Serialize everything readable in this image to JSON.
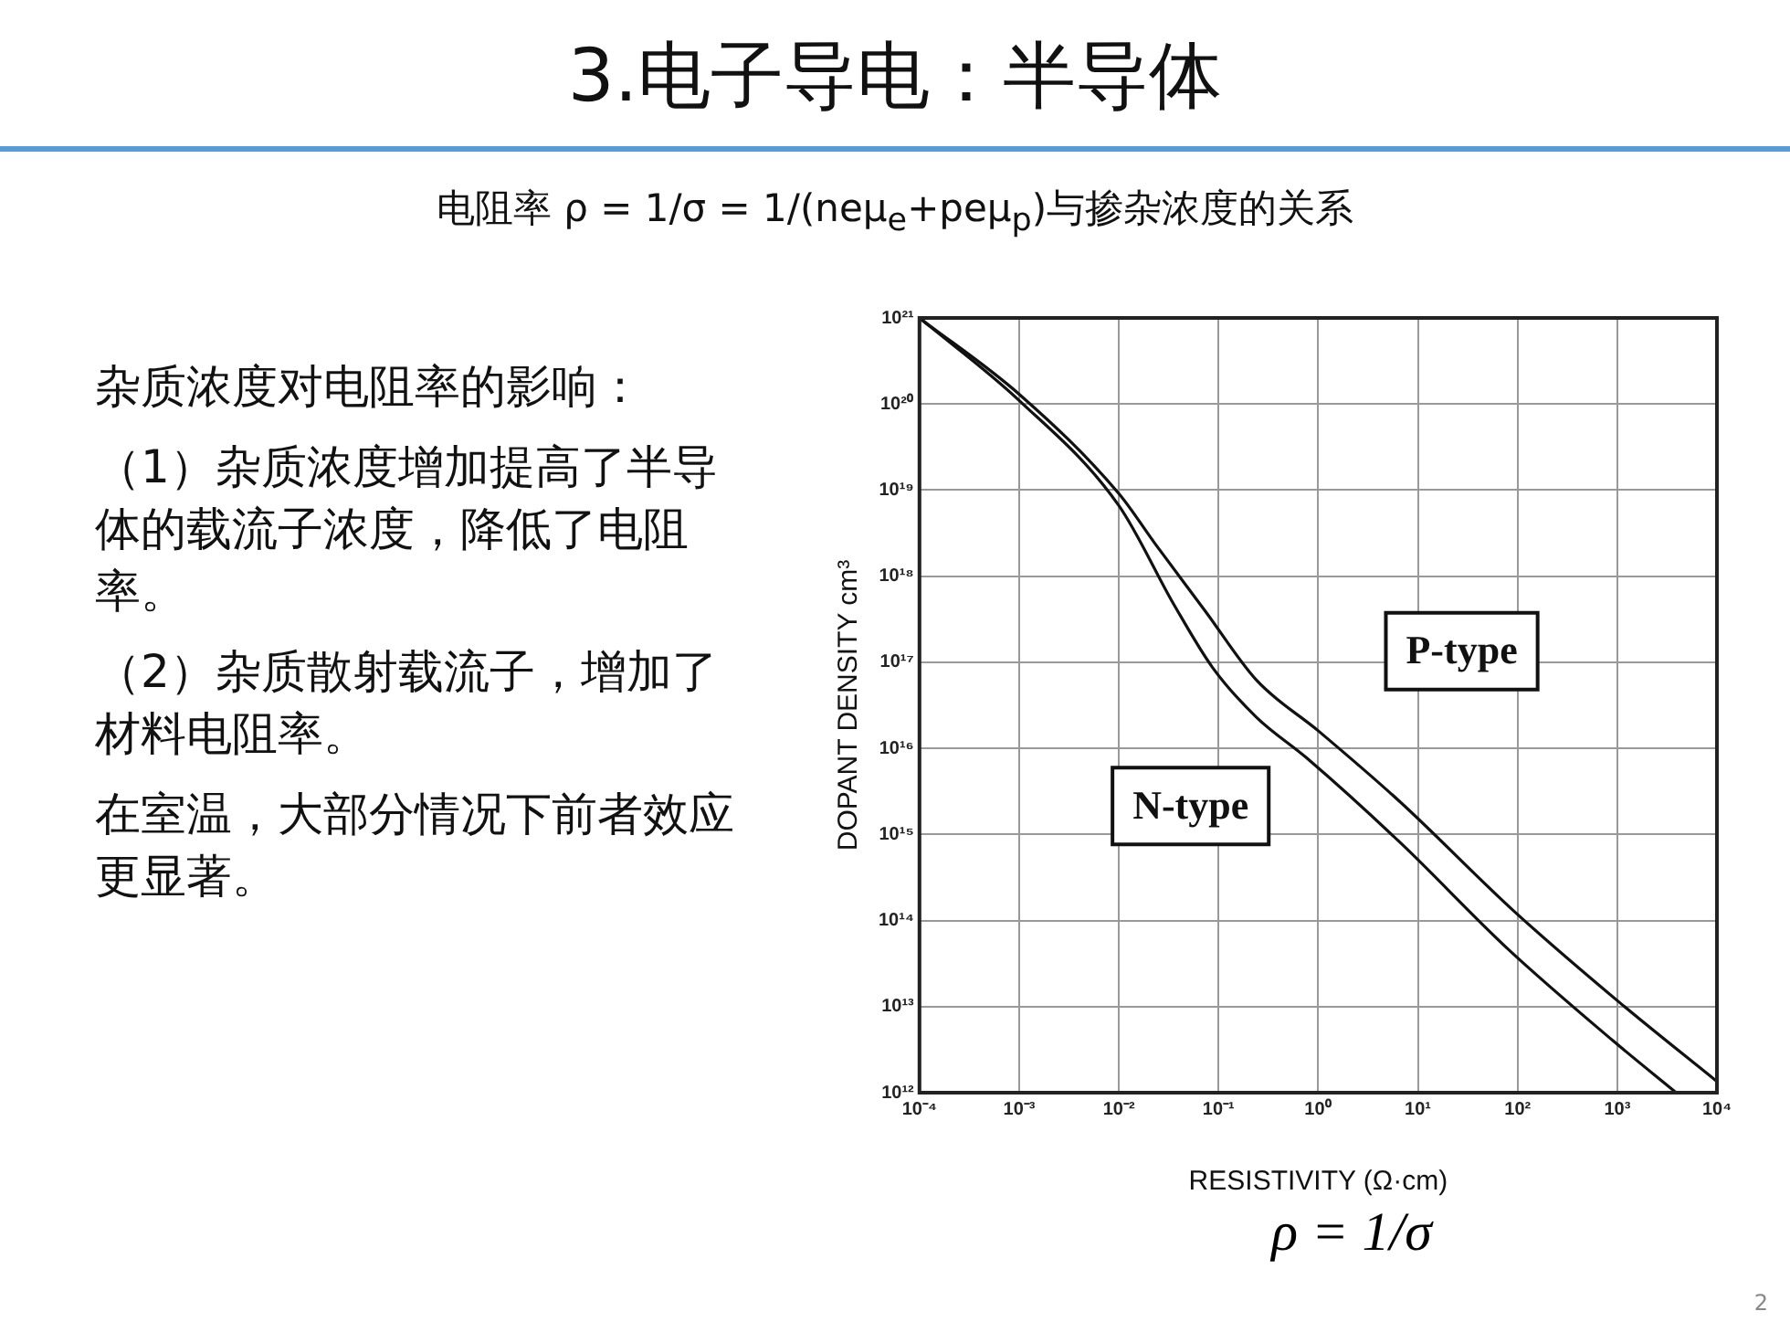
{
  "chart_data": {
    "type": "line",
    "title": "3.电子导电：半导体",
    "subtitle": "电阻率 ρ = 1/σ = 1/(neμ$_{e}$+peμ$_{p}$)与掺杂浓度的关系",
    "xlabel": "RESISTIVITY (Ω·cm)",
    "ylabel": "DOPANT DENSITY cm³",
    "log": "xy",
    "grid": true,
    "legend": false,
    "marker": "none",
    "line_style": "solid",
    "xlim": [
      0.0001,
      10000
    ],
    "ylim": [
      1000000000000.0,
      1e+21
    ],
    "xticks": [
      {
        "value": 0.0001,
        "label": "10⁻⁴"
      },
      {
        "value": 0.001,
        "label": "10⁻³"
      },
      {
        "value": 0.01,
        "label": "10⁻²"
      },
      {
        "value": 0.1,
        "label": "10⁻¹"
      },
      {
        "value": 1,
        "label": "10⁰"
      },
      {
        "value": 10,
        "label": "10¹"
      },
      {
        "value": 100,
        "label": "10²"
      },
      {
        "value": 1000,
        "label": "10³"
      },
      {
        "value": 10000,
        "label": "10⁴"
      }
    ],
    "yticks": [
      {
        "value": 1000000000000.0,
        "label": "10¹²"
      },
      {
        "value": 10000000000000.0,
        "label": "10¹³"
      },
      {
        "value": 100000000000000.0,
        "label": "10¹⁴"
      },
      {
        "value": 1000000000000000.0,
        "label": "10¹⁵"
      },
      {
        "value": 1e+16,
        "label": "10¹⁶"
      },
      {
        "value": 1e+17,
        "label": "10¹⁷"
      },
      {
        "value": 1e+18,
        "label": "10¹⁸"
      },
      {
        "value": 1e+19,
        "label": "10¹⁹"
      },
      {
        "value": 1e+20,
        "label": "10²⁰"
      },
      {
        "value": 1e+21,
        "label": "10²¹"
      }
    ],
    "series": [
      {
        "name": "P-type",
        "color": "#111111",
        "x": [
          0.0001,
          0.001,
          0.01,
          0.023,
          0.074,
          0.24,
          1,
          6.6,
          91,
          1070,
          10000
        ],
        "values": [
          1e+21,
          1.3e+20,
          9.1e+18,
          2.4e+18,
          3.9e+17,
          6.2e+16,
          1.6e+16,
          2400000000000000.0,
          130000000000000.0,
          11000000000000.0,
          1350000000000.0
        ]
      },
      {
        "name": "N-type",
        "color": "#111111",
        "x": [
          0.0001,
          0.001,
          0.01,
          0.036,
          0.087,
          0.24,
          0.76,
          6.6,
          78,
          910,
          3900
        ],
        "values": [
          1e+21,
          1.1e+20,
          6.6e+18,
          4.6e+17,
          8.7e+16,
          2.3e+16,
          7800000000000000.0,
          810000000000000.0,
          48000000000000.0,
          4000000000000.0,
          1000000000000.0
        ]
      }
    ],
    "annotations": [
      "杂质浓度对电阻率的影响：",
      "（1）杂质浓度增加提高了半导体的载流子浓度，降低了电阻率。",
      "（2）杂质散射载流子，增加了材料电阻率。",
      "在室温，大部分情况下前者效应更显著。",
      "ρ = 1/σ",
      "2"
    ]
  }
}
